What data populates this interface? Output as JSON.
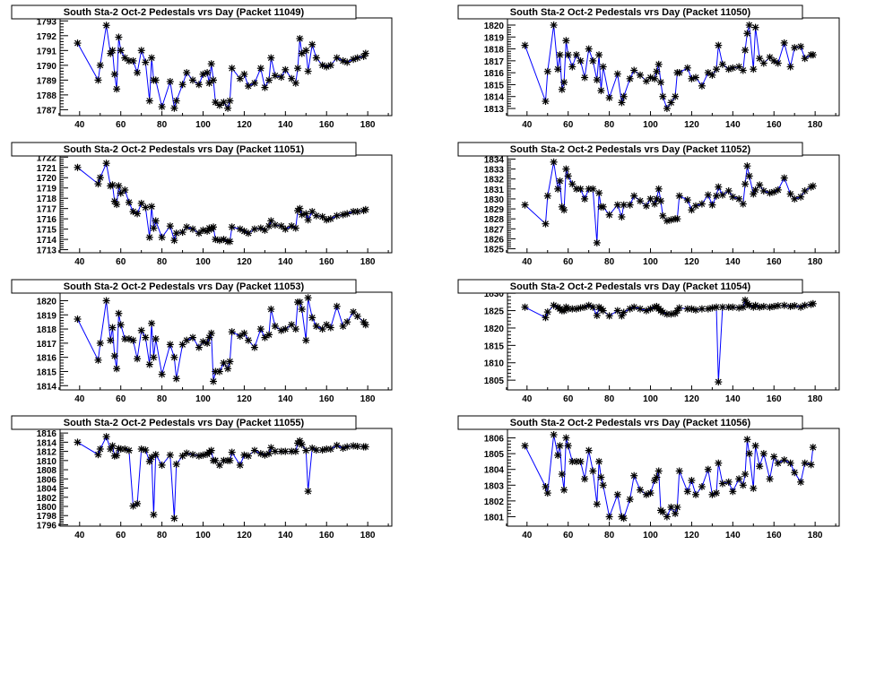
{
  "colors": {
    "line": "#0000ff",
    "marker": "#000000",
    "frame": "#000000",
    "background": "#ffffff"
  },
  "chart_data": [
    {
      "type": "line",
      "title": "South Sta-2 Oct-2 Pedestals vrs Day (Packet 11049)",
      "xlabel": "",
      "ylabel": "",
      "xlim": [
        30.5,
        191.7
      ],
      "ylim": [
        1786.6,
        1793.2
      ],
      "xticks": [
        "40",
        "60",
        "80",
        "100",
        "120",
        "140",
        "160",
        "180"
      ],
      "yticks": [
        "1787",
        "1788",
        "1789",
        "1790",
        "1791",
        "1792",
        "1793"
      ],
      "y": [
        1791.5,
        1789,
        1790,
        1792.7,
        1790.8,
        1791,
        1789.4,
        1788.4,
        1791.9,
        1791,
        1790.5,
        1790.3,
        1790.3,
        1789.5,
        1791,
        1790.2,
        1787.6,
        1790.5,
        1789,
        1789,
        1787.2,
        1788.9,
        1787.1,
        1787.6,
        1788.7,
        1789.5,
        1789,
        1788.7,
        1789.4,
        1789.5,
        1788.8,
        1790.1,
        1789,
        1787.5,
        1787.3,
        1787.5,
        1787.1,
        1787.6,
        1789.8,
        1789.1,
        1789.4,
        1788.6,
        1788.8,
        1789.8,
        1788.5,
        1789,
        1790.5,
        1789.3,
        1789.2,
        1789.7,
        1789.1,
        1788.8,
        1789.8,
        1791.8,
        1790.8,
        1791,
        1789.6,
        1791.4,
        1790.5,
        1790,
        1789.9,
        1790,
        1790.5,
        1790.3,
        1790.2,
        1790.4,
        1790.5,
        1790.6,
        1790.8
      ]
    },
    {
      "type": "line",
      "title": "South Sta-2 Oct-2 Pedestals vrs Day (Packet 11050)",
      "xlabel": "",
      "ylabel": "",
      "xlim": [
        30.5,
        191.7
      ],
      "ylim": [
        1812.4,
        1820.6
      ],
      "xticks": [
        "40",
        "60",
        "80",
        "100",
        "120",
        "140",
        "160",
        "180"
      ],
      "yticks": [
        "1813",
        "1814",
        "1815",
        "1816",
        "1817",
        "1818",
        "1819",
        "1820"
      ],
      "y": [
        1818.3,
        1813.6,
        1816.1,
        1820,
        1816.3,
        1817.5,
        1814.6,
        1815.2,
        1818.7,
        1817.5,
        1816.5,
        1817.5,
        1817,
        1815.6,
        1818,
        1817,
        1815.4,
        1817.5,
        1814.5,
        1816.5,
        1813.9,
        1815.9,
        1813.5,
        1814,
        1815.5,
        1816.2,
        1815.8,
        1815.3,
        1815.6,
        1815.5,
        1816.1,
        1816.7,
        1815.2,
        1814,
        1813,
        1813.5,
        1814,
        1816,
        1816,
        1816.4,
        1815.5,
        1815.6,
        1814.9,
        1816,
        1815.8,
        1816.3,
        1818.3,
        1816.7,
        1816.3,
        1816.4,
        1816.5,
        1816.2,
        1817.9,
        1819.3,
        1820,
        1816.3,
        1819.8,
        1817.2,
        1816.8,
        1817.3,
        1817,
        1816.8,
        1818.5,
        1816.5,
        1818.1,
        1818.2,
        1817.2,
        1817.5,
        1817.5
      ]
    },
    {
      "type": "line",
      "title": "South Sta-2 Oct-2 Pedestals vrs Day (Packet 11051)",
      "xlabel": "",
      "ylabel": "",
      "xlim": [
        30.5,
        191.7
      ],
      "ylim": [
        1712.7,
        1722.2
      ],
      "xticks": [
        "40",
        "60",
        "80",
        "100",
        "120",
        "140",
        "160",
        "180"
      ],
      "yticks": [
        "1713",
        "1714",
        "1715",
        "1716",
        "1717",
        "1718",
        "1719",
        "1720",
        "1721",
        "1722"
      ],
      "y": [
        1721,
        1719.4,
        1720,
        1721.4,
        1719.2,
        1719.3,
        1717.7,
        1717.4,
        1719.2,
        1718.5,
        1718.8,
        1717.6,
        1716.7,
        1716.5,
        1717.5,
        1717.1,
        1714.2,
        1717.2,
        1715.1,
        1715.8,
        1714.2,
        1715.3,
        1713.9,
        1714.6,
        1714.7,
        1715.2,
        1715,
        1714.6,
        1714.9,
        1714.8,
        1715.1,
        1715,
        1715.2,
        1714,
        1713.9,
        1714,
        1713.8,
        1713.8,
        1715.2,
        1715,
        1714.8,
        1714.6,
        1715,
        1715.1,
        1714.9,
        1715.3,
        1715.8,
        1715.4,
        1715.3,
        1715,
        1715.3,
        1715.1,
        1716.8,
        1717,
        1716.4,
        1716.5,
        1715.9,
        1716.7,
        1716.3,
        1716.2,
        1715.9,
        1716,
        1716.3,
        1716.4,
        1716.5,
        1716.7,
        1716.7,
        1716.8,
        1716.9
      ]
    },
    {
      "type": "line",
      "title": "South Sta-2 Oct-2 Pedestals vrs Day (Packet 11052)",
      "xlabel": "",
      "ylabel": "",
      "xlim": [
        30.5,
        191.7
      ],
      "ylim": [
        1824.6,
        1834.4
      ],
      "xticks": [
        "40",
        "60",
        "80",
        "100",
        "120",
        "140",
        "160",
        "180"
      ],
      "yticks": [
        "1825",
        "1826",
        "1827",
        "1828",
        "1829",
        "1830",
        "1831",
        "1832",
        "1833",
        "1834"
      ],
      "y": [
        1829.4,
        1827.5,
        1830.3,
        1833.7,
        1831,
        1831.8,
        1829.2,
        1828.9,
        1833,
        1832.3,
        1831.5,
        1831,
        1831,
        1830,
        1831,
        1831,
        1825.6,
        1830.6,
        1829.2,
        1829.2,
        1828.4,
        1829.4,
        1828.2,
        1829.4,
        1829.4,
        1830.3,
        1829.8,
        1829.3,
        1830,
        1829.5,
        1830,
        1831,
        1829.8,
        1828.3,
        1827.8,
        1827.9,
        1828,
        1828,
        1830.3,
        1829.9,
        1828.9,
        1829.3,
        1829.5,
        1830.4,
        1829.4,
        1830.3,
        1831.2,
        1830.4,
        1830.8,
        1830.2,
        1830,
        1829.5,
        1831.5,
        1833.3,
        1832.3,
        1830.5,
        1830.9,
        1831.4,
        1830.8,
        1830.6,
        1830.7,
        1830.9,
        1832.1,
        1830.5,
        1830,
        1830.2,
        1830.8,
        1831.2,
        1831.3
      ]
    },
    {
      "type": "line",
      "title": "South Sta-2 Oct-2 Pedestals vrs Day (Packet 11053)",
      "xlabel": "",
      "ylabel": "",
      "xlim": [
        30.5,
        191.7
      ],
      "ylim": [
        1813.7,
        1820.6
      ],
      "xticks": [
        "40",
        "60",
        "80",
        "100",
        "120",
        "140",
        "160",
        "180"
      ],
      "yticks": [
        "1814",
        "1815",
        "1816",
        "1817",
        "1818",
        "1819",
        "1820"
      ],
      "y": [
        1818.7,
        1815.8,
        1817,
        1820,
        1817.2,
        1818.1,
        1816.1,
        1815.2,
        1819.1,
        1818.3,
        1817.3,
        1817.3,
        1817.2,
        1815.9,
        1817.9,
        1817.4,
        1815.5,
        1818.4,
        1816,
        1817.3,
        1814.8,
        1816.9,
        1816,
        1814.5,
        1816.9,
        1817.2,
        1817.4,
        1816.7,
        1817.1,
        1817,
        1817.4,
        1817.7,
        1814.3,
        1815,
        1815,
        1815.6,
        1815.2,
        1815.7,
        1817.8,
        1817.5,
        1817.7,
        1817.2,
        1816.7,
        1818,
        1817.4,
        1817.6,
        1819.4,
        1818.2,
        1817.9,
        1818,
        1818.3,
        1818,
        1819.9,
        1819.9,
        1819.4,
        1817.2,
        1820.2,
        1818.8,
        1818.2,
        1818,
        1818.3,
        1818.1,
        1819.6,
        1818.2,
        1818.5,
        1819.2,
        1818.9,
        1818.5,
        1818.3
      ]
    },
    {
      "type": "line",
      "title": "South Sta-2 Oct-2 Pedestals vrs Day (Packet 11054)",
      "xlabel": "",
      "ylabel": "",
      "xlim": [
        30.5,
        191.7
      ],
      "ylim": [
        1802.2,
        1830.3
      ],
      "xticks": [
        "40",
        "60",
        "80",
        "100",
        "120",
        "140",
        "160",
        "180"
      ],
      "yticks": [
        "1805",
        "1810",
        "1815",
        "1820",
        "1825",
        "1830"
      ],
      "y": [
        1826,
        1823,
        1824.6,
        1826.5,
        1826,
        1825.5,
        1825,
        1825,
        1826,
        1825.5,
        1825.5,
        1825.5,
        1825.8,
        1826,
        1826.5,
        1826,
        1823.6,
        1826,
        1825.5,
        1825,
        1823.5,
        1825,
        1823.5,
        1824.5,
        1825.5,
        1826,
        1825.5,
        1825,
        1825.5,
        1826,
        1826.2,
        1825.5,
        1825,
        1824.5,
        1824,
        1824,
        1824.2,
        1825,
        1825.8,
        1825.5,
        1825.5,
        1825.2,
        1825.5,
        1825.5,
        1825.8,
        1826,
        1804.5,
        1826,
        1826,
        1826,
        1825.8,
        1826,
        1828,
        1827,
        1826.5,
        1826,
        1826.5,
        1826,
        1826.2,
        1826,
        1826.2,
        1826.4,
        1826.5,
        1826.2,
        1826.4,
        1826,
        1826.5,
        1826.8,
        1827
      ]
    },
    {
      "type": "line",
      "title": "South Sta-2 Oct-2 Pedestals vrs Day (Packet 11055)",
      "xlabel": "",
      "ylabel": "",
      "xlim": [
        30.5,
        191.7
      ],
      "ylim": [
        1795.7,
        1817
      ],
      "xticks": [
        "40",
        "60",
        "80",
        "100",
        "120",
        "140",
        "160",
        "180"
      ],
      "yticks": [
        "1796",
        "1798",
        "1800",
        "1802",
        "1804",
        "1806",
        "1808",
        "1810",
        "1812",
        "1814",
        "1816"
      ],
      "y": [
        1814,
        1811.3,
        1812.5,
        1815.2,
        1812.5,
        1813.2,
        1811,
        1811.1,
        1812.6,
        1812.5,
        1812.5,
        1812.2,
        1800.1,
        1800.6,
        1812.5,
        1812.3,
        1809.8,
        1810.7,
        1798.2,
        1811.3,
        1809,
        1811.2,
        1797.4,
        1809.2,
        1811,
        1811.6,
        1811.3,
        1811,
        1811.2,
        1811.4,
        1811.8,
        1812.2,
        1810,
        1810,
        1809,
        1810,
        1810,
        1810,
        1811.8,
        1809,
        1811.2,
        1811,
        1812.2,
        1811.5,
        1811.2,
        1811.5,
        1812.8,
        1812,
        1812,
        1812,
        1812,
        1812,
        1813.8,
        1814.3,
        1813.5,
        1812.2,
        1803.3,
        1812.7,
        1812.3,
        1812.3,
        1812.5,
        1812.5,
        1813.3,
        1812.7,
        1813,
        1813.2,
        1813.1,
        1813,
        1813
      ]
    },
    {
      "type": "line",
      "title": "South Sta-2 Oct-2 Pedestals vrs Day (Packet 11056)",
      "xlabel": "",
      "ylabel": "",
      "xlim": [
        30.5,
        191.7
      ],
      "ylim": [
        1800.4,
        1806.6
      ],
      "xticks": [
        "40",
        "60",
        "80",
        "100",
        "120",
        "140",
        "160",
        "180"
      ],
      "yticks": [
        "1801",
        "1802",
        "1803",
        "1804",
        "1805",
        "1806"
      ],
      "y": [
        1805.5,
        1802.9,
        1802.5,
        1806.2,
        1804.9,
        1805.5,
        1803.7,
        1802.7,
        1806,
        1805.5,
        1804.5,
        1804.5,
        1804.5,
        1803.4,
        1805.2,
        1803.9,
        1801.8,
        1804.5,
        1803.5,
        1803,
        1801,
        1802.4,
        1801,
        1800.9,
        1802.1,
        1803.6,
        1802.7,
        1802.4,
        1802.5,
        1803.3,
        1803.5,
        1803.9,
        1801.4,
        1801.3,
        1801,
        1801.6,
        1801.2,
        1801.6,
        1803.9,
        1802.6,
        1803.3,
        1802.4,
        1802.9,
        1804,
        1802.4,
        1802.5,
        1804.4,
        1803.1,
        1803.2,
        1802.6,
        1803.4,
        1803,
        1803.7,
        1805.9,
        1805,
        1802.8,
        1805.5,
        1804.2,
        1805,
        1803.4,
        1804.8,
        1804.4,
        1804.6,
        1804.4,
        1803.8,
        1803.2,
        1804.4,
        1804.3,
        1805.4
      ]
    }
  ],
  "x": [
    39,
    49,
    50,
    53,
    55,
    56,
    57,
    58,
    59,
    60,
    62,
    64,
    66,
    68,
    70,
    72,
    74,
    75,
    76,
    77,
    80,
    84,
    86,
    87,
    90,
    92,
    95,
    98,
    100,
    102,
    103,
    104,
    105,
    106,
    108,
    110,
    112,
    113,
    114,
    118,
    120,
    122,
    125,
    128,
    130,
    132,
    133,
    135,
    138,
    140,
    143,
    145,
    146,
    147,
    148,
    150,
    151,
    153,
    155,
    158,
    160,
    162,
    165,
    168,
    170,
    173,
    175,
    178,
    179
  ]
}
